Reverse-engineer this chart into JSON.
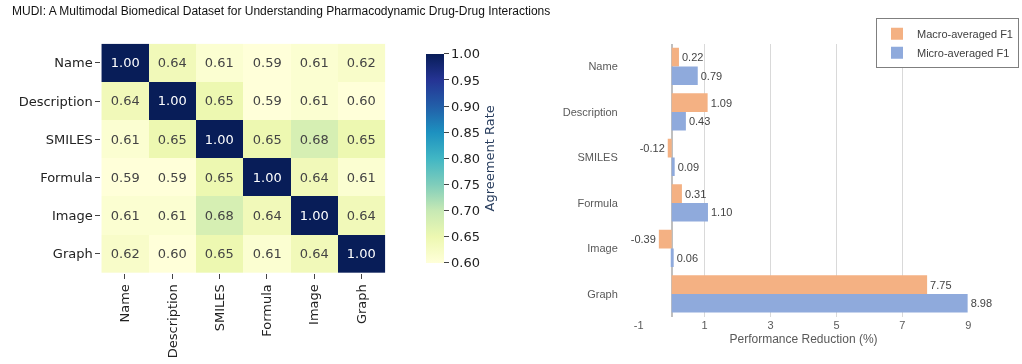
{
  "chart_data": [
    {
      "type": "heatmap",
      "title": "MUDI: A Multimodal Biomedical Dataset for Understanding Pharmacodynamic Drug-Drug Interactions",
      "clabel": "Agreement Rate",
      "categories": [
        "Name",
        "Description",
        "SMILES",
        "Formula",
        "Image",
        "Graph"
      ],
      "y_categories": [
        "Name",
        "Description",
        "SMILES",
        "Formula",
        "Image",
        "Graph"
      ],
      "cells": [
        [
          1.0,
          0.64,
          0.61,
          0.59,
          0.61,
          0.62
        ],
        [
          0.64,
          1.0,
          0.65,
          0.59,
          0.61,
          0.6
        ],
        [
          0.61,
          0.65,
          1.0,
          0.65,
          0.68,
          0.65
        ],
        [
          0.59,
          0.59,
          0.65,
          1.0,
          0.64,
          0.61
        ],
        [
          0.61,
          0.61,
          0.68,
          0.64,
          1.0,
          0.64
        ],
        [
          0.62,
          0.6,
          0.65,
          0.61,
          0.64,
          1.0
        ]
      ],
      "cell_labels": [
        [
          "1.00",
          "0.64",
          "0.61",
          "0.59",
          "0.61",
          "0.62"
        ],
        [
          "0.64",
          "1.00",
          "0.65",
          "0.59",
          "0.61",
          "0.60"
        ],
        [
          "0.61",
          "0.65",
          "1.00",
          "0.65",
          "0.68",
          "0.65"
        ],
        [
          "0.59",
          "0.59",
          "0.65",
          "1.00",
          "0.64",
          "0.61"
        ],
        [
          "0.61",
          "0.61",
          "0.68",
          "0.64",
          "1.00",
          "0.64"
        ],
        [
          "0.62",
          "0.60",
          "0.65",
          "0.61",
          "0.64",
          "1.00"
        ]
      ],
      "clim": [
        0.6,
        1.0
      ],
      "cticks": [
        {
          "value": 0.6,
          "label": "0.60"
        },
        {
          "value": 0.65,
          "label": "0.65"
        },
        {
          "value": 0.7,
          "label": "0.70"
        },
        {
          "value": 0.75,
          "label": "0.75"
        },
        {
          "value": 0.8,
          "label": "0.80"
        },
        {
          "value": 0.85,
          "label": "0.85"
        },
        {
          "value": 0.9,
          "label": "0.90"
        },
        {
          "value": 0.95,
          "label": "0.95"
        },
        {
          "value": 1.0,
          "label": "1.00"
        }
      ]
    },
    {
      "type": "bar",
      "orientation": "horizontal",
      "xlabel": "Performance Reduction (%)",
      "categories": [
        "Name",
        "Description",
        "SMILES",
        "Formula",
        "Image",
        "Graph"
      ],
      "series": [
        {
          "name": "Macro-averaged F1",
          "color": "#f4b183",
          "values": [
            0.22,
            1.09,
            -0.12,
            0.31,
            -0.39,
            7.75
          ],
          "value_labels": [
            "0.22",
            "1.09",
            "-0.12",
            "0.31",
            "-0.39",
            "7.75"
          ]
        },
        {
          "name": "Micro-averaged F1",
          "color": "#8faadc",
          "values": [
            0.79,
            0.43,
            0.09,
            1.1,
            0.06,
            8.98
          ],
          "value_labels": [
            "0.79",
            "0.43",
            "0.09",
            "1.10",
            "0.06",
            "8.98"
          ]
        }
      ],
      "xlim": [
        -1,
        9
      ],
      "xticks": [
        -1,
        1,
        3,
        5,
        7,
        9
      ],
      "grid": "x",
      "legend": "top right"
    }
  ]
}
